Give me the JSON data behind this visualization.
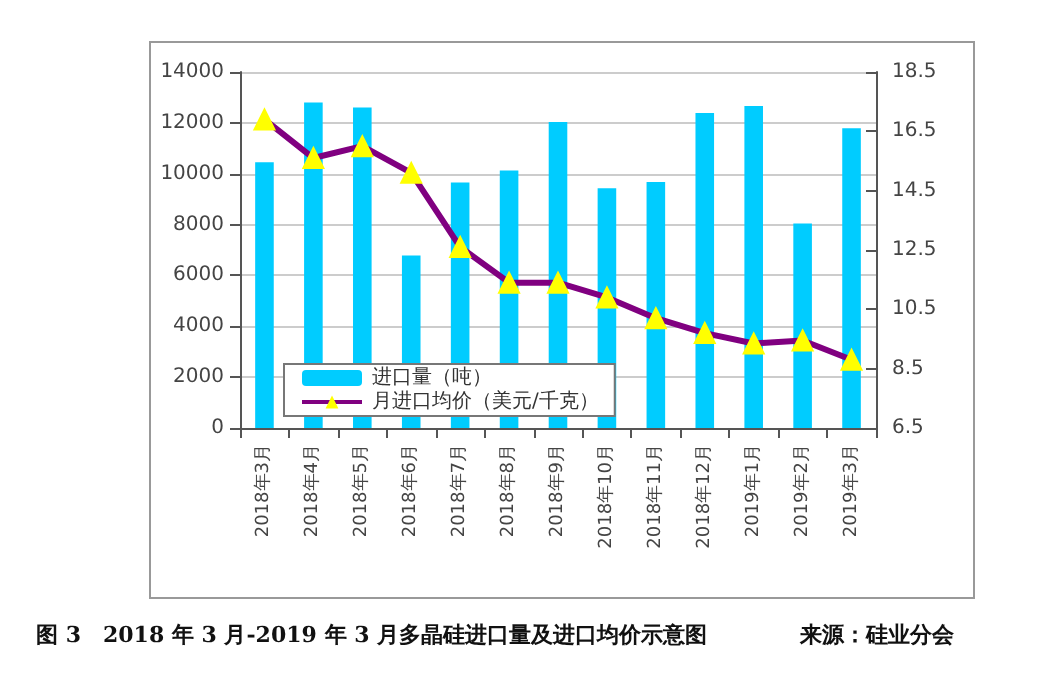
{
  "chart_data": {
    "type": "bar",
    "categories": [
      "2018年3月",
      "2018年4月",
      "2018年5月",
      "2018年6月",
      "2018年7月",
      "2018年8月",
      "2018年9月",
      "2018年10月",
      "2018年11月",
      "2018年12月",
      "2019年1月",
      "2019年2月",
      "2019年3月"
    ],
    "series": [
      {
        "name": "进口量（吨）",
        "color": "#00ccff",
        "values": [
          10450,
          12800,
          12600,
          6780,
          9650,
          10130,
          12030,
          9430,
          9670,
          12390,
          12660,
          8040,
          11790
        ]
      },
      {
        "name": "月进口均价（美元/千克）",
        "type": "line",
        "axis": "y2",
        "color": "#800080",
        "marker": "triangle",
        "values": [
          16.9,
          15.6,
          16.0,
          15.1,
          12.6,
          11.4,
          11.4,
          10.9,
          10.2,
          9.7,
          9.35,
          9.45,
          8.8
        ]
      }
    ],
    "ylim": [
      0,
      14000
    ],
    "yticks": [
      0,
      2000,
      4000,
      6000,
      8000,
      10000,
      12000,
      14000
    ],
    "y2lim": [
      6.5,
      18.5
    ],
    "y2ticks": [
      6.5,
      8.5,
      10.5,
      12.5,
      14.5,
      16.5,
      18.5
    ],
    "grid": "y",
    "legend": "bottom left",
    "annotations": [
      "图 3　2018 年 3 月-2019 年 3 月多晶硅进口量及进口均价示意图",
      "来源：硅业分会"
    ]
  }
}
